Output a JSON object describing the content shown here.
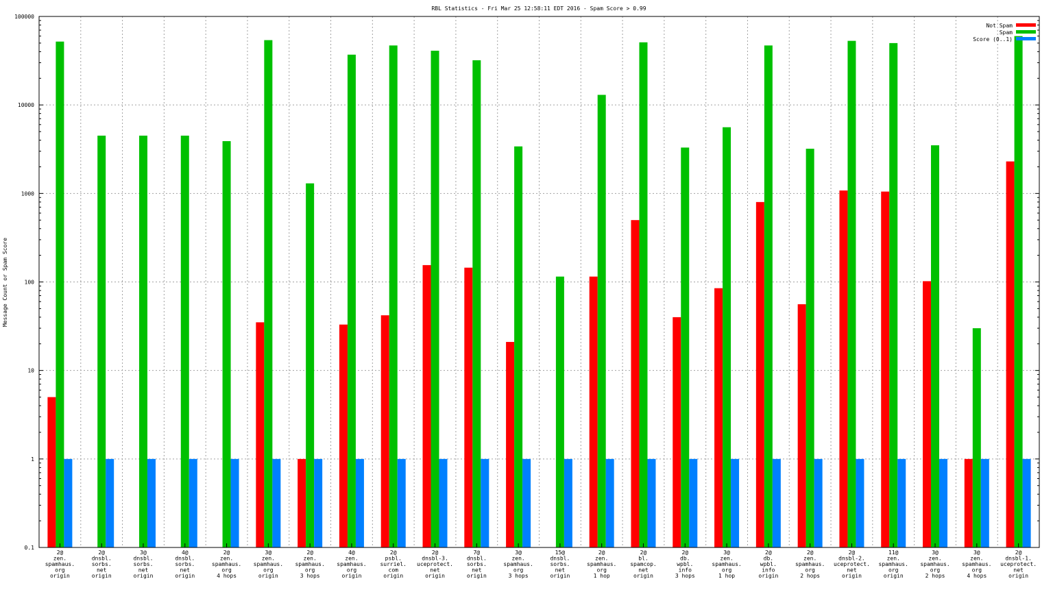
{
  "chart_data": {
    "type": "bar",
    "title": "RBL Statistics - Fri Mar 25 12:58:11 EDT 2016 - Spam Score > 0.99",
    "xlabel": "",
    "ylabel": "Message Count or Spam Score",
    "yscale": "log",
    "ylim": [
      0.1,
      100000
    ],
    "yticks": [
      "0.1",
      "1",
      "10",
      "100",
      "1000",
      "10000",
      "100000"
    ],
    "grid": true,
    "legend_position": "top-right",
    "categories": [
      [
        "2@",
        "zen.",
        "spamhaus.",
        "org",
        "origin"
      ],
      [
        "2@",
        "dnsbl.",
        "sorbs.",
        "net",
        "origin"
      ],
      [
        "3@",
        "dnsbl.",
        "sorbs.",
        "net",
        "origin"
      ],
      [
        "4@",
        "dnsbl.",
        "sorbs.",
        "net",
        "origin"
      ],
      [
        "2@",
        "zen.",
        "spamhaus.",
        "org",
        "4 hops"
      ],
      [
        "3@",
        "zen.",
        "spamhaus.",
        "org",
        "origin"
      ],
      [
        "2@",
        "zen.",
        "spamhaus.",
        "org",
        "3 hops"
      ],
      [
        "4@",
        "zen.",
        "spamhaus.",
        "org",
        "origin"
      ],
      [
        "2@",
        "psbl.",
        "surriel.",
        "com",
        "origin"
      ],
      [
        "2@",
        "dnsbl-3.",
        "uceprotect.",
        "net",
        "origin"
      ],
      [
        "7@",
        "dnsbl.",
        "sorbs.",
        "net",
        "origin"
      ],
      [
        "3@",
        "zen.",
        "spamhaus.",
        "org",
        "3 hops"
      ],
      [
        "15@",
        "dnsbl.",
        "sorbs.",
        "net",
        "origin"
      ],
      [
        "2@",
        "zen.",
        "spamhaus.",
        "org",
        "1 hop"
      ],
      [
        "2@",
        "bl.",
        "spamcop.",
        "net",
        "origin"
      ],
      [
        "2@",
        "db.",
        "wpbl.",
        "info",
        "3 hops"
      ],
      [
        "3@",
        "zen.",
        "spamhaus.",
        "org",
        "1 hop"
      ],
      [
        "2@",
        "db.",
        "wpbl.",
        "info",
        "origin"
      ],
      [
        "2@",
        "zen.",
        "spamhaus.",
        "org",
        "2 hops"
      ],
      [
        "2@",
        "dnsbl-2.",
        "uceprotect.",
        "net",
        "origin"
      ],
      [
        "11@",
        "zen.",
        "spamhaus.",
        "org",
        "origin"
      ],
      [
        "3@",
        "zen.",
        "spamhaus.",
        "org",
        "2 hops"
      ],
      [
        "3@",
        "zen.",
        "spamhaus.",
        "org",
        "4 hops"
      ],
      [
        "2@",
        "dnsbl-1.",
        "uceprotect.",
        "net",
        "origin"
      ]
    ],
    "series": [
      {
        "name": "Not Spam",
        "color": "#ff0000",
        "values": [
          5,
          null,
          null,
          null,
          null,
          35,
          1,
          33,
          42,
          155,
          145,
          21,
          null,
          115,
          500,
          40,
          85,
          800,
          56,
          1080,
          1050,
          102,
          1,
          2300
        ]
      },
      {
        "name": "Spam",
        "color": "#00c000",
        "values": [
          52000,
          4500,
          4500,
          4500,
          3900,
          54000,
          1300,
          37000,
          47000,
          41000,
          32000,
          3400,
          115,
          13000,
          51000,
          3300,
          5600,
          47000,
          3200,
          53000,
          50000,
          3500,
          30,
          60000
        ]
      },
      {
        "name": "Score (0..1)",
        "color": "#0080ff",
        "values": [
          1,
          1,
          1,
          1,
          1,
          1,
          1,
          1,
          1,
          1,
          1,
          1,
          1,
          1,
          1,
          1,
          1,
          1,
          1,
          1,
          1,
          1,
          1,
          1
        ]
      }
    ]
  }
}
